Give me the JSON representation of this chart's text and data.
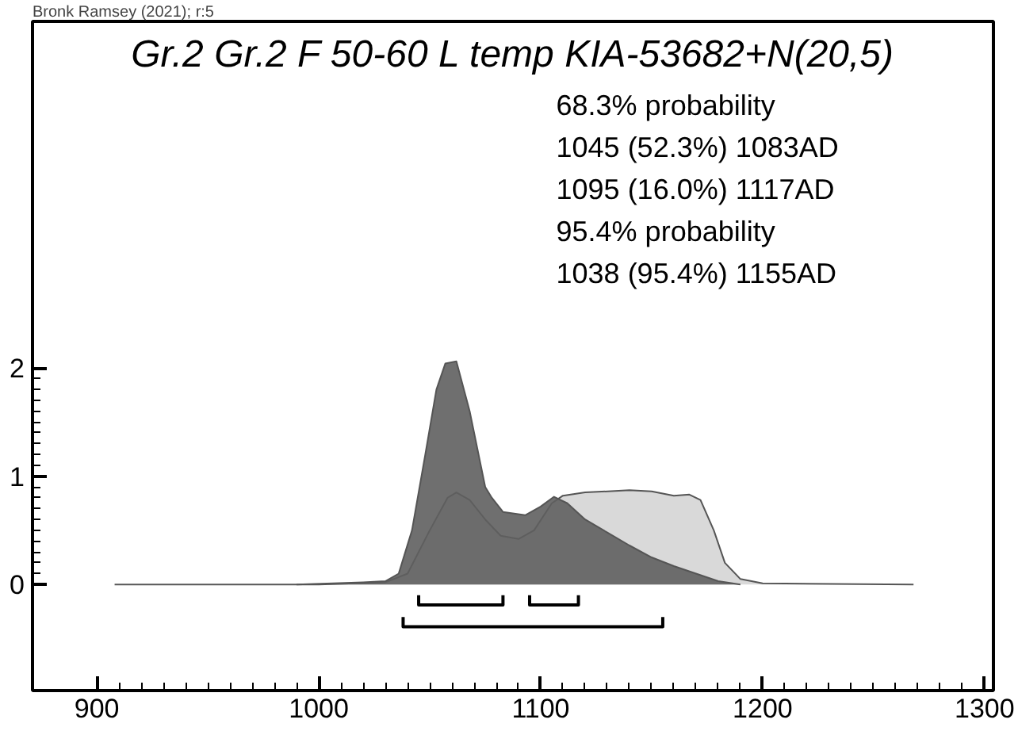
{
  "chart_data": {
    "type": "area",
    "title": "Gr.2 Gr.2 F 50-60 L temp KIA-53682+N(20,5)",
    "annotations": [
      "Bronk Ramsey (2021); r:5",
      "68.3% probability",
      "1045 (52.3%) 1083AD",
      "1095 (16.0%) 1117AD",
      "95.4% probability",
      "1038 (95.4%) 1155AD"
    ],
    "xlim": [
      871,
      1304
    ],
    "ylim": [
      -0.98,
      5.2
    ],
    "xticks": [
      900,
      1000,
      1100,
      1200,
      1300
    ],
    "yticks": [
      0,
      1,
      2
    ],
    "grid": false,
    "series": [
      {
        "color": "#d9d9d9",
        "x": [
          908,
          1000,
          1030,
          1040,
          1050,
          1058,
          1062,
          1068,
          1075,
          1082,
          1090,
          1097,
          1105,
          1110,
          1120,
          1140,
          1150,
          1160,
          1167,
          1172,
          1178,
          1183,
          1190,
          1200,
          1268
        ],
        "values": [
          0,
          0,
          0.02,
          0.1,
          0.5,
          0.8,
          0.85,
          0.78,
          0.6,
          0.45,
          0.42,
          0.5,
          0.75,
          0.82,
          0.85,
          0.87,
          0.86,
          0.82,
          0.83,
          0.78,
          0.5,
          0.2,
          0.05,
          0.01,
          0
        ]
      },
      {
        "color": "#5f5f5f",
        "x": [
          990,
          1020,
          1030,
          1036,
          1042,
          1048,
          1053,
          1057,
          1062,
          1068,
          1075,
          1078,
          1083,
          1093,
          1100,
          1106,
          1112,
          1120,
          1130,
          1140,
          1150,
          1160,
          1170,
          1180,
          1190
        ],
        "values": [
          0,
          0.02,
          0.03,
          0.1,
          0.5,
          1.2,
          1.8,
          2.04,
          2.06,
          1.6,
          0.9,
          0.8,
          0.67,
          0.64,
          0.72,
          0.81,
          0.75,
          0.6,
          0.48,
          0.36,
          0.25,
          0.17,
          0.1,
          0.03,
          0
        ]
      },
      {
        "type": "line",
        "color": "#000000",
        "x": [
          1045,
          1045,
          1083,
          1083
        ],
        "values": [
          -0.1,
          -0.19,
          -0.19,
          -0.1
        ]
      },
      {
        "type": "line",
        "color": "#000000",
        "x": [
          1095,
          1095,
          1117,
          1117
        ],
        "values": [
          -0.1,
          -0.19,
          -0.19,
          -0.1
        ]
      },
      {
        "type": "line",
        "color": "#000000",
        "x": [
          1038,
          1038,
          1155,
          1155
        ],
        "values": [
          -0.3,
          -0.39,
          -0.39,
          -0.3
        ]
      }
    ]
  }
}
